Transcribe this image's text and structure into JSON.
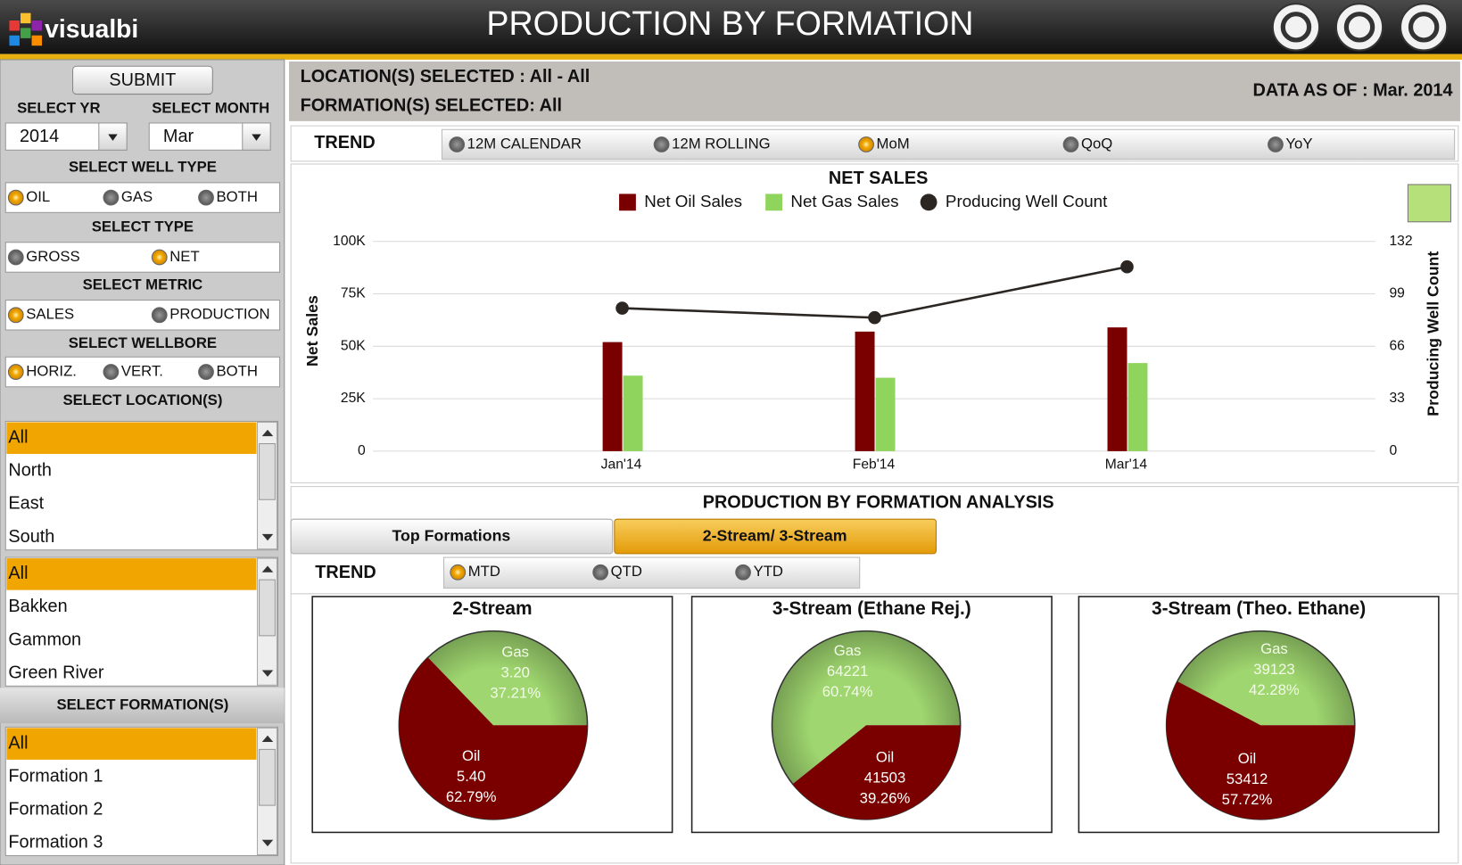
{
  "header": {
    "logo": "visualbi",
    "title": "PRODUCTION BY FORMATION"
  },
  "sidebar": {
    "submit": "SUBMIT",
    "year_label": "SELECT YR",
    "year": "2014",
    "month_label": "SELECT MONTH",
    "month": "Mar",
    "groups": [
      {
        "title": "SELECT WELL TYPE",
        "options": [
          "OIL",
          "GAS",
          "BOTH"
        ],
        "selected": 0
      },
      {
        "title": "SELECT TYPE",
        "options": [
          "GROSS",
          "NET"
        ],
        "selected": 1
      },
      {
        "title": "SELECT METRIC",
        "options": [
          "SALES",
          "PRODUCTION"
        ],
        "selected": 0
      },
      {
        "title": "SELECT WELLBORE",
        "options": [
          "HORIZ.",
          "VERT.",
          "BOTH"
        ],
        "selected": 0
      }
    ],
    "location_title": "SELECT LOCATION(S)",
    "location_lists": [
      [
        "All",
        "North",
        "East",
        "South"
      ],
      [
        "All",
        "Bakken",
        "Gammon",
        "Green River"
      ]
    ],
    "formation_title": "SELECT FORMATION(S)",
    "formations": [
      "All",
      "Formation 1",
      "Formation 2",
      "Formation 3"
    ]
  },
  "summary": {
    "location": "LOCATION(S) SELECTED : All - All",
    "formation": "FORMATION(S) SELECTED: All",
    "data_as_of": "DATA AS OF : Mar. 2014"
  },
  "trend": {
    "label": "TREND",
    "options": [
      "12M CALENDAR",
      "12M ROLLING",
      "MoM",
      "QoQ",
      "YoY"
    ],
    "selected": 2
  },
  "analysis": {
    "title": "PRODUCTION BY FORMATION ANALYSIS",
    "tabs": [
      "Top Formations",
      "2-Stream/ 3-Stream"
    ],
    "active_tab": 1,
    "trend_label": "TREND",
    "trend_options": [
      "MTD",
      "QTD",
      "YTD"
    ],
    "selected": 0
  },
  "chart_data": [
    {
      "type": "bar",
      "title": "NET  SALES",
      "categories": [
        "Jan'14",
        "Feb'14",
        "Mar'14"
      ],
      "series": [
        {
          "name": "Net Oil Sales",
          "color": "#7a0000",
          "values": [
            52000,
            57000,
            59000
          ]
        },
        {
          "name": "Net Gas Sales",
          "color": "#8fd45c",
          "values": [
            36000,
            35000,
            42000
          ]
        },
        {
          "name": "Producing Well Count",
          "type": "line",
          "axis": "y2",
          "color": "#2b2622",
          "values": [
            90,
            84,
            116
          ]
        }
      ],
      "ylabel": "Net  Sales",
      "y2label": "Producing Well Count",
      "ylim": [
        0,
        100000
      ],
      "yticks": [
        0,
        {
          "value": 25000,
          "label": "25K"
        },
        {
          "value": 50000,
          "label": "50K"
        },
        {
          "value": 75000,
          "label": "75K"
        },
        {
          "value": 100000,
          "label": "100K"
        }
      ],
      "y2lim": [
        0,
        132
      ],
      "y2ticks": [
        0,
        33,
        66,
        99,
        132
      ],
      "grid": true
    },
    {
      "type": "pie",
      "title": "2-Stream",
      "categories": [
        "Gas",
        "Oil"
      ],
      "colors": [
        "#9fd66f",
        "#7a0000"
      ],
      "values": [
        3.2,
        5.4
      ],
      "value_labels": [
        "3.20",
        "5.40"
      ],
      "percent_labels": [
        "37.21%",
        "62.79%"
      ]
    },
    {
      "type": "pie",
      "title": "3-Stream (Ethane Rej.)",
      "categories": [
        "Gas",
        "Oil"
      ],
      "colors": [
        "#9fd66f",
        "#7a0000"
      ],
      "values": [
        64221,
        41503
      ],
      "percent_labels": [
        "60.74%",
        "39.26%"
      ]
    },
    {
      "type": "pie",
      "title": "3-Stream (Theo. Ethane)",
      "categories": [
        "Gas",
        "Oil"
      ],
      "colors": [
        "#9fd66f",
        "#7a0000"
      ],
      "values": [
        39123,
        53412
      ],
      "percent_labels": [
        "42.28%",
        "57.72%"
      ]
    }
  ]
}
